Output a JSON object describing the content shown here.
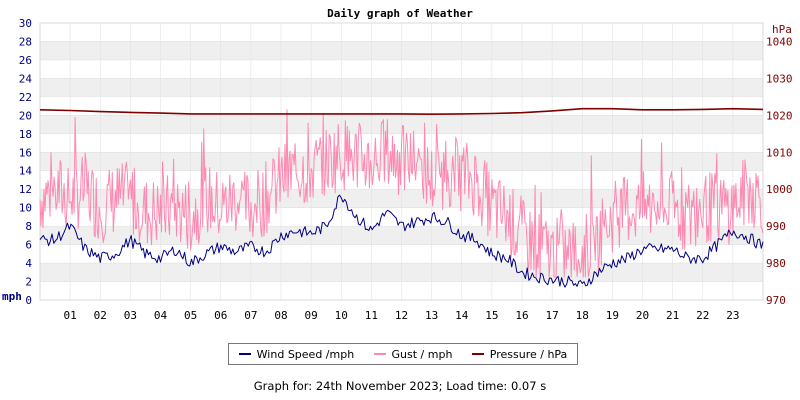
{
  "chart_data": {
    "type": "line",
    "title": "Daily graph of Weather",
    "left_axis": {
      "unit": "mph",
      "ylim": [
        0,
        30
      ],
      "ticks": [
        0,
        2,
        4,
        6,
        8,
        10,
        12,
        14,
        16,
        18,
        20,
        22,
        24,
        26,
        28,
        30
      ]
    },
    "right_axis": {
      "unit": "hPa",
      "ylim": [
        970,
        1045
      ],
      "ticks": [
        970,
        980,
        990,
        1000,
        1010,
        1020,
        1030,
        1040
      ]
    },
    "x": {
      "unit": "hour",
      "range": [
        0,
        24
      ],
      "tick_labels": [
        "01",
        "02",
        "03",
        "04",
        "05",
        "06",
        "07",
        "08",
        "09",
        "10",
        "11",
        "12",
        "13",
        "14",
        "15",
        "16",
        "17",
        "18",
        "19",
        "20",
        "21",
        "22",
        "23"
      ]
    },
    "grid": true,
    "legend_position": "bottom",
    "series": [
      {
        "name": "Wind Speed /mph",
        "axis": "left",
        "color": "#000080",
        "x": [
          0,
          0.5,
          1,
          1.5,
          2,
          2.5,
          3,
          3.5,
          4,
          4.5,
          5,
          5.5,
          6,
          6.5,
          7,
          7.5,
          8,
          8.5,
          9,
          9.5,
          10,
          10.5,
          11,
          11.5,
          12,
          12.5,
          13,
          13.5,
          14,
          14.5,
          15,
          15.5,
          16,
          16.5,
          17,
          17.5,
          18,
          18.5,
          19,
          19.5,
          20,
          20.5,
          21,
          21.5,
          22,
          22.5,
          23,
          23.5,
          24
        ],
        "values": [
          6.5,
          6.5,
          8,
          5.5,
          4.5,
          5,
          6.5,
          5,
          4.5,
          5.5,
          4,
          5,
          5.8,
          5.2,
          5.8,
          5.2,
          7,
          7.5,
          7.2,
          8,
          11.5,
          9,
          7.5,
          9.5,
          8,
          8.5,
          9,
          8.5,
          7,
          6.5,
          5,
          4.5,
          3,
          2.5,
          2.2,
          2,
          1.5,
          3,
          4,
          4.5,
          5.5,
          5.5,
          5.5,
          4.5,
          4.5,
          6,
          7.5,
          6.8,
          5.8
        ]
      },
      {
        "name": "Gust / mph",
        "axis": "left",
        "color": "#ff88b0",
        "x": [
          0,
          0.5,
          1,
          1.5,
          2,
          2.5,
          3,
          3.5,
          4,
          4.5,
          5,
          5.5,
          6,
          6.5,
          7,
          7.5,
          8,
          8.5,
          9,
          9.5,
          10,
          10.5,
          11,
          11.5,
          12,
          12.5,
          13,
          13.5,
          14,
          14.5,
          15,
          15.5,
          16,
          16.5,
          17,
          17.5,
          18,
          18.5,
          19,
          19.5,
          20,
          20.5,
          21,
          21.5,
          22,
          22.5,
          23,
          23.5,
          24
        ],
        "values": [
          11,
          12,
          11,
          12,
          10,
          11,
          11,
          9.5,
          9.5,
          10,
          9,
          11,
          10,
          11,
          10,
          11,
          13,
          14,
          14,
          15,
          16,
          15.5,
          15,
          16,
          15,
          15,
          13,
          14,
          13.5,
          13,
          10,
          9,
          7,
          6,
          5,
          5,
          5,
          7,
          9,
          10,
          10,
          10,
          10,
          9,
          10,
          10,
          10,
          12,
          11
        ]
      },
      {
        "name": "Pressure / hPa",
        "axis": "right",
        "color": "#800000",
        "x": [
          0,
          1,
          2,
          3,
          4,
          5,
          6,
          7,
          8,
          9,
          10,
          11,
          12,
          13,
          14,
          15,
          16,
          17,
          18,
          19,
          20,
          21,
          22,
          23,
          24
        ],
        "values": [
          1021.5,
          1021.3,
          1021,
          1020.8,
          1020.6,
          1020.4,
          1020.4,
          1020.4,
          1020.4,
          1020.4,
          1020.4,
          1020.4,
          1020.4,
          1020.3,
          1020.4,
          1020.5,
          1020.7,
          1021.2,
          1021.8,
          1021.8,
          1021.5,
          1021.5,
          1021.6,
          1021.8,
          1021.6
        ]
      }
    ]
  },
  "footer": "Graph for: 24th November 2023; Load time: 0.07 s",
  "colors": {
    "band": "#efefef",
    "gridline": "#ffffff",
    "left_axis_text": "#000080",
    "right_axis_text": "#800000",
    "plot_border": "#d8d8d8"
  }
}
